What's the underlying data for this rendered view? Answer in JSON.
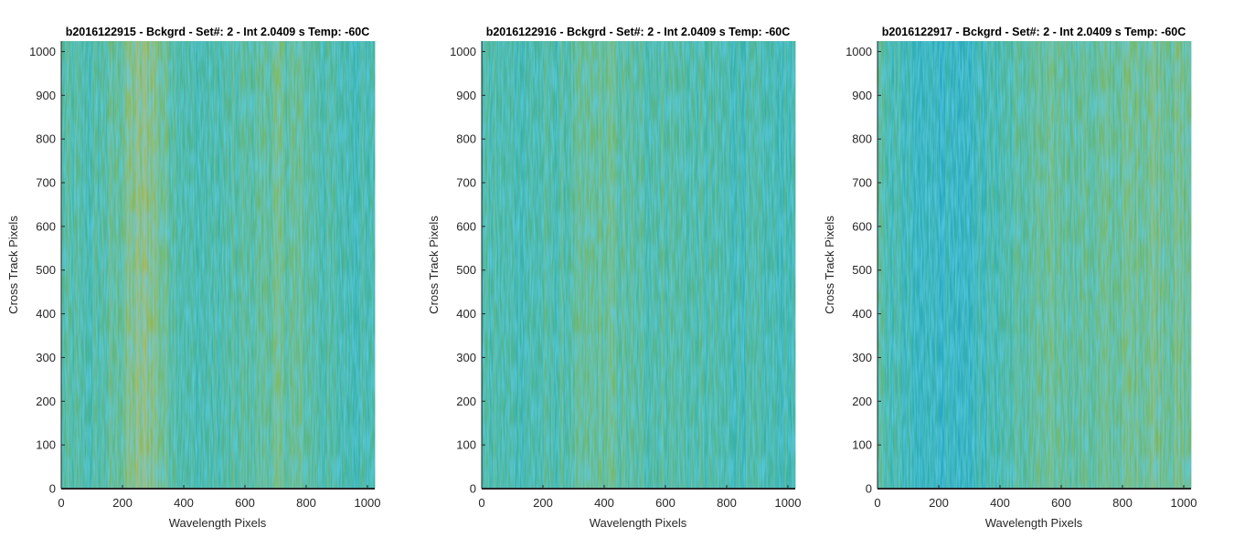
{
  "colors": {
    "blue": "#1aa3d4",
    "teal": "#3fb3a4",
    "green": "#7dbb6a",
    "yellow": "#d4b94a",
    "axis": "#262626"
  },
  "chart_data": [
    {
      "type": "heatmap",
      "title": "b2016122915 - Bckgrd - Set#: 2 - Int 2.0409 s Temp: -60C",
      "xlabel": "Wavelength Pixels",
      "ylabel": "Cross Track Pixels",
      "xlim": [
        0,
        1024
      ],
      "ylim": [
        0,
        1024
      ],
      "xticks": [
        0,
        200,
        400,
        600,
        800,
        1000
      ],
      "yticks": [
        0,
        100,
        200,
        300,
        400,
        500,
        600,
        700,
        800,
        900,
        1000
      ],
      "colormap": "parula",
      "column_profile": [
        {
          "x": 0,
          "level": 0.45
        },
        {
          "x": 100,
          "level": 0.4
        },
        {
          "x": 180,
          "level": 0.55
        },
        {
          "x": 230,
          "level": 0.72
        },
        {
          "x": 290,
          "level": 0.78
        },
        {
          "x": 340,
          "level": 0.6
        },
        {
          "x": 420,
          "level": 0.38
        },
        {
          "x": 520,
          "level": 0.4
        },
        {
          "x": 620,
          "level": 0.5
        },
        {
          "x": 700,
          "level": 0.6
        },
        {
          "x": 780,
          "level": 0.55
        },
        {
          "x": 880,
          "level": 0.4
        },
        {
          "x": 1024,
          "level": 0.38
        }
      ]
    },
    {
      "type": "heatmap",
      "title": "b2016122916 - Bckgrd - Set#: 2 - Int 2.0409 s Temp: -60C",
      "xlabel": "Wavelength Pixels",
      "ylabel": "Cross Track Pixels",
      "xlim": [
        0,
        1024
      ],
      "ylim": [
        0,
        1024
      ],
      "xticks": [
        0,
        200,
        400,
        600,
        800,
        1000
      ],
      "yticks": [
        0,
        100,
        200,
        300,
        400,
        500,
        600,
        700,
        800,
        900,
        1000
      ],
      "colormap": "parula",
      "column_profile": [
        {
          "x": 0,
          "level": 0.42
        },
        {
          "x": 120,
          "level": 0.38
        },
        {
          "x": 250,
          "level": 0.42
        },
        {
          "x": 350,
          "level": 0.55
        },
        {
          "x": 420,
          "level": 0.58
        },
        {
          "x": 500,
          "level": 0.45
        },
        {
          "x": 600,
          "level": 0.48
        },
        {
          "x": 700,
          "level": 0.42
        },
        {
          "x": 800,
          "level": 0.38
        },
        {
          "x": 900,
          "level": 0.36
        },
        {
          "x": 1024,
          "level": 0.35
        }
      ]
    },
    {
      "type": "heatmap",
      "title": "b2016122917 - Bckgrd - Set#: 2 - Int 2.0409 s Temp: -60C",
      "xlabel": "Wavelength Pixels",
      "ylabel": "Cross Track Pixels",
      "xlim": [
        0,
        1024
      ],
      "ylim": [
        0,
        1024
      ],
      "xticks": [
        0,
        200,
        400,
        600,
        800,
        1000
      ],
      "yticks": [
        0,
        100,
        200,
        300,
        400,
        500,
        600,
        700,
        800,
        900,
        1000
      ],
      "colormap": "parula",
      "column_profile": [
        {
          "x": 0,
          "level": 0.45
        },
        {
          "x": 100,
          "level": 0.32
        },
        {
          "x": 200,
          "level": 0.22
        },
        {
          "x": 300,
          "level": 0.25
        },
        {
          "x": 400,
          "level": 0.4
        },
        {
          "x": 500,
          "level": 0.52
        },
        {
          "x": 600,
          "level": 0.58
        },
        {
          "x": 700,
          "level": 0.55
        },
        {
          "x": 800,
          "level": 0.6
        },
        {
          "x": 900,
          "level": 0.68
        },
        {
          "x": 1024,
          "level": 0.6
        }
      ]
    }
  ]
}
